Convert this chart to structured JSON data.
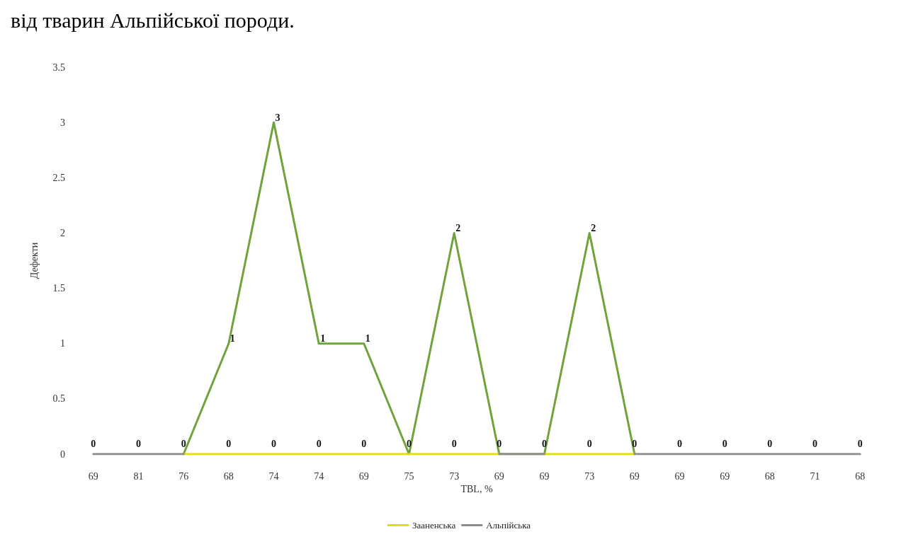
{
  "chart_data": {
    "type": "line",
    "title": "від тварин Альпійської породи.",
    "xlabel": "TBL, %",
    "ylabel": "Дефекти",
    "categories": [
      "69",
      "81",
      "76",
      "68",
      "74",
      "74",
      "69",
      "75",
      "73",
      "69",
      "69",
      "73",
      "69",
      "69",
      "69",
      "68",
      "71",
      "68"
    ],
    "series": [
      {
        "color": "#70a33c",
        "values": [
          null,
          null,
          0,
          1,
          3,
          1,
          1,
          0,
          2,
          0,
          0,
          2,
          0,
          null,
          null,
          null,
          null,
          null
        ],
        "value_labels": [
          null,
          null,
          null,
          "1",
          "3",
          "1",
          "1",
          null,
          "2",
          null,
          null,
          "2",
          null,
          null,
          null,
          null,
          null,
          null
        ]
      },
      {
        "name": "Зааненська",
        "color": "#e0e000",
        "values": [
          null,
          null,
          0,
          0,
          0,
          0,
          0,
          0,
          0,
          0,
          null,
          null,
          null,
          null,
          null,
          null,
          null,
          null
        ],
        "value_labels": [
          null,
          null,
          null,
          "0",
          "0",
          "0",
          "0",
          "0",
          "0",
          null,
          null,
          null,
          null,
          null,
          null,
          null,
          null,
          null
        ]
      },
      {
        "color": "#e0e000",
        "values": [
          null,
          null,
          null,
          null,
          null,
          null,
          null,
          null,
          null,
          null,
          0,
          0,
          0,
          null,
          null,
          null,
          null,
          null
        ],
        "value_labels": [
          null,
          null,
          null,
          null,
          null,
          null,
          null,
          null,
          null,
          null,
          null,
          "0",
          null,
          null,
          null,
          null,
          null,
          null
        ]
      },
      {
        "name": "Альпійська",
        "color": "#8c8c8c",
        "values": [
          0,
          0,
          0,
          null,
          null,
          null,
          null,
          null,
          null,
          0,
          0,
          null,
          0,
          0,
          0,
          0,
          0,
          0
        ],
        "value_labels": [
          "0",
          "0",
          "0",
          null,
          null,
          null,
          null,
          null,
          null,
          "0",
          "0",
          null,
          "0",
          "0",
          "0",
          "0",
          "0",
          "0"
        ]
      }
    ],
    "ylim": [
      0,
      3.5
    ],
    "yticks": [
      0,
      0.5,
      1,
      1.5,
      2,
      2.5,
      3,
      3.5
    ],
    "grid": false,
    "legend": "bottom",
    "marker": "none",
    "line_style": "solid"
  }
}
